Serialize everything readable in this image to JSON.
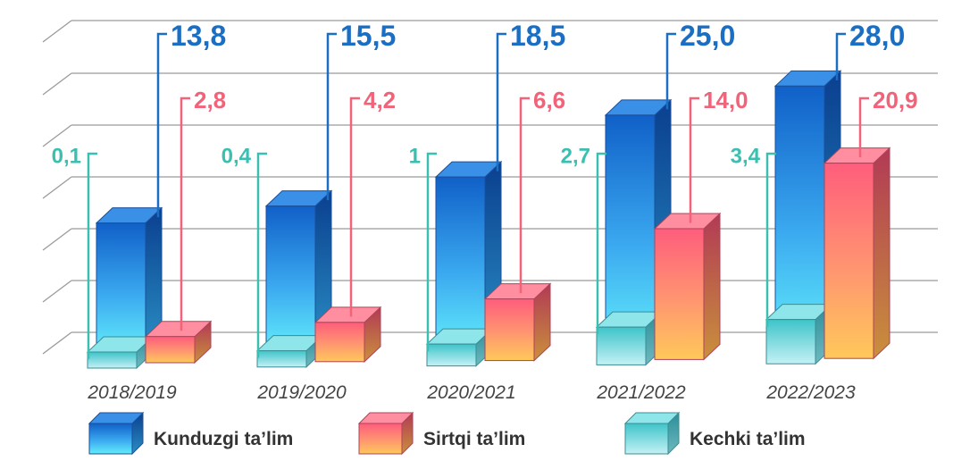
{
  "chart_data": {
    "type": "bar",
    "categories": [
      "2018/2019",
      "2019/2020",
      "2020/2021",
      "2021/2022",
      "2022/2023"
    ],
    "series": [
      {
        "name": "Kunduzgi ta’lim",
        "values": [
          13.8,
          15.5,
          18.5,
          25.0,
          28.0
        ],
        "labels": [
          "13,8",
          "15,5",
          "18,5",
          "25,0",
          "28,0"
        ],
        "color": "#1f6fd1",
        "label_color": "#1a6fc4"
      },
      {
        "name": "Sirtqi ta’lim",
        "values": [
          2.8,
          4.2,
          6.6,
          14.0,
          20.9
        ],
        "labels": [
          "2,8",
          "4,2",
          "6,6",
          "14,0",
          "20,9"
        ],
        "color": "#ff6b7d",
        "label_color": "#f2637a"
      },
      {
        "name": "Kechki ta’lim",
        "values": [
          0.1,
          0.4,
          1.0,
          2.7,
          3.4
        ],
        "labels": [
          "0,1",
          "0,4",
          "1",
          "2,7",
          "3,4"
        ],
        "color": "#5fd3d6",
        "label_color": "#3bbfb0"
      }
    ],
    "xlabel": "",
    "ylabel": "",
    "grid": true,
    "legend_position": "bottom",
    "style": "3d-bars"
  }
}
